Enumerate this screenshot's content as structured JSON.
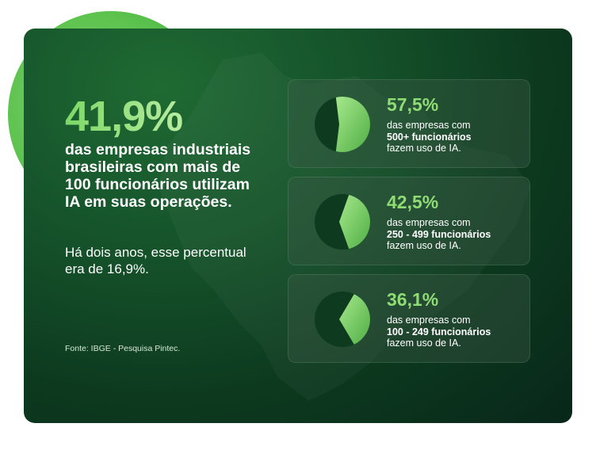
{
  "headline": {
    "value": "41,9%",
    "statement": "das empresas industriais brasileiras com mais de 100 funcionários utilizam IA em suas operações.",
    "note": "Há dois anos, esse percentual era de 16,9%.",
    "source": "Fonte: IBGE - Pesquisa Pintec."
  },
  "colors": {
    "accent": "#8fdc74",
    "card_bg": "#0d3a1f",
    "pie_light": "#7fd66a",
    "pie_dark": "#0e3a20"
  },
  "chart_data": {
    "type": "pie",
    "series": [
      {
        "value_label": "57,5%",
        "value": 57.5,
        "line1": "das empresas com",
        "line2": "500+ funcionários",
        "line3": "fazem uso de IA."
      },
      {
        "value_label": "42,5%",
        "value": 42.5,
        "line1": "das empresas com",
        "line2": "250 - 499 funcionários",
        "line3": "fazem uso de IA."
      },
      {
        "value_label": "36,1%",
        "value": 36.1,
        "line1": "das empresas com",
        "line2": "100 - 249 funcionários",
        "line3": "fazem uso de IA."
      }
    ]
  }
}
